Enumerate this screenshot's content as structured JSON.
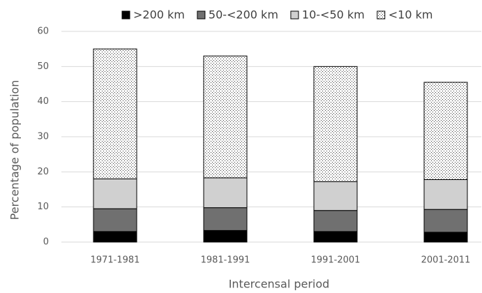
{
  "chart_data": {
    "type": "stacked_bar",
    "x_label": "Intercensal period",
    "y_label": "Percentage of population",
    "categories": [
      "1971-1981",
      "1981-1991",
      "1991-2001",
      "2001-2011"
    ],
    "series": [
      {
        "name": ">200 km",
        "color": "#000000",
        "values": [
          3.0,
          3.3,
          3.0,
          2.8
        ]
      },
      {
        "name": "50-<200 km",
        "color": "#707070",
        "values": [
          6.5,
          6.5,
          6.0,
          6.5
        ]
      },
      {
        "name": "10-<50 km",
        "color": "#d0d0d0",
        "values": [
          8.5,
          8.5,
          8.2,
          8.5
        ]
      },
      {
        "name": "<10 km",
        "color": "#ffffff",
        "pattern": "dots",
        "values": [
          37.0,
          34.7,
          32.8,
          27.7
        ]
      }
    ],
    "ylim": [
      0,
      60
    ],
    "yticks": [
      0,
      10,
      20,
      30,
      40,
      50,
      60
    ],
    "grid": true,
    "legend": "top"
  }
}
